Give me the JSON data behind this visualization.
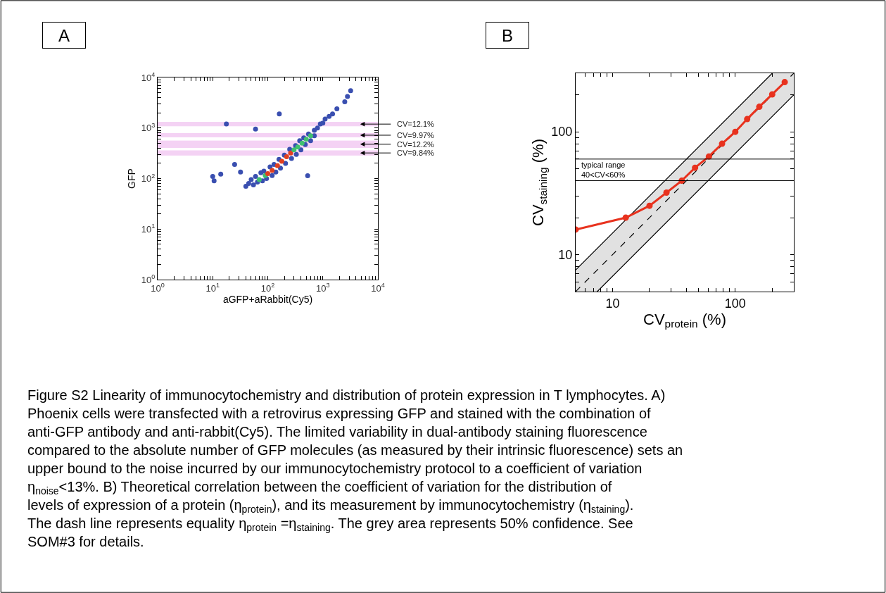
{
  "chart_data": [
    {
      "type": "scatter",
      "title": "A",
      "xlabel": "aGFP+aRabbit(Cy5)",
      "ylabel": "GFP",
      "log": "xy",
      "marker": "circle",
      "grid": false,
      "legend": false,
      "xlim": [
        1,
        10000
      ],
      "ylim": [
        1,
        10000
      ],
      "xticks": [
        {
          "value": 1,
          "label": "10$^{0}$"
        },
        {
          "value": 2,
          "label": null
        },
        {
          "value": 3,
          "label": null
        },
        {
          "value": 4,
          "label": null
        },
        {
          "value": 5,
          "label": null
        },
        {
          "value": 6,
          "label": null
        },
        {
          "value": 7,
          "label": null
        },
        {
          "value": 8,
          "label": null
        },
        {
          "value": 9,
          "label": null
        },
        {
          "value": 10,
          "label": "10$^{1}$"
        },
        {
          "value": 20,
          "label": null
        },
        {
          "value": 30,
          "label": null
        },
        {
          "value": 40,
          "label": null
        },
        {
          "value": 50,
          "label": null
        },
        {
          "value": 60,
          "label": null
        },
        {
          "value": 70,
          "label": null
        },
        {
          "value": 80,
          "label": null
        },
        {
          "value": 90,
          "label": null
        },
        {
          "value": 100,
          "label": "10$^{2}$"
        },
        {
          "value": 200,
          "label": null
        },
        {
          "value": 300,
          "label": null
        },
        {
          "value": 400,
          "label": null
        },
        {
          "value": 500,
          "label": null
        },
        {
          "value": 600,
          "label": null
        },
        {
          "value": 700,
          "label": null
        },
        {
          "value": 800,
          "label": null
        },
        {
          "value": 900,
          "label": null
        },
        {
          "value": 1000,
          "label": "10$^{3}$"
        },
        {
          "value": 2000,
          "label": null
        },
        {
          "value": 3000,
          "label": null
        },
        {
          "value": 4000,
          "label": null
        },
        {
          "value": 5000,
          "label": null
        },
        {
          "value": 6000,
          "label": null
        },
        {
          "value": 7000,
          "label": null
        },
        {
          "value": 8000,
          "label": null
        },
        {
          "value": 9000,
          "label": null
        },
        {
          "value": 10000,
          "label": "10$^{4}$"
        }
      ],
      "yticks": [
        {
          "value": 1,
          "label": "10$^{0}$"
        },
        {
          "value": 2,
          "label": null
        },
        {
          "value": 3,
          "label": null
        },
        {
          "value": 4,
          "label": null
        },
        {
          "value": 5,
          "label": null
        },
        {
          "value": 6,
          "label": null
        },
        {
          "value": 7,
          "label": null
        },
        {
          "value": 8,
          "label": null
        },
        {
          "value": 9,
          "label": null
        },
        {
          "value": 10,
          "label": "10$^{1}$"
        },
        {
          "value": 20,
          "label": null
        },
        {
          "value": 30,
          "label": null
        },
        {
          "value": 40,
          "label": null
        },
        {
          "value": 50,
          "label": null
        },
        {
          "value": 60,
          "label": null
        },
        {
          "value": 70,
          "label": null
        },
        {
          "value": 80,
          "label": null
        },
        {
          "value": 90,
          "label": null
        },
        {
          "value": 100,
          "label": "10$^{2}$"
        },
        {
          "value": 200,
          "label": null
        },
        {
          "value": 300,
          "label": null
        },
        {
          "value": 400,
          "label": null
        },
        {
          "value": 500,
          "label": null
        },
        {
          "value": 600,
          "label": null
        },
        {
          "value": 700,
          "label": null
        },
        {
          "value": 800,
          "label": null
        },
        {
          "value": 900,
          "label": null
        },
        {
          "value": 1000,
          "label": "10$^{3}$"
        },
        {
          "value": 2000,
          "label": null
        },
        {
          "value": 3000,
          "label": null
        },
        {
          "value": 4000,
          "label": null
        },
        {
          "value": 5000,
          "label": null
        },
        {
          "value": 6000,
          "label": null
        },
        {
          "value": 7000,
          "label": null
        },
        {
          "value": 8000,
          "label": null
        },
        {
          "value": 9000,
          "label": null
        },
        {
          "value": 10000,
          "label": "10$^{4}$"
        }
      ],
      "x": [
        40,
        45,
        50,
        55,
        60,
        65,
        75,
        80,
        85,
        95,
        110,
        120,
        130,
        140,
        160,
        170,
        200,
        210,
        250,
        270,
        320,
        330,
        380,
        400,
        450,
        480,
        550,
        600,
        700,
        700,
        800,
        900,
        1000,
        1100,
        1300,
        1500,
        1800,
        2500,
        3200,
        2800,
        10,
        10.6,
        17.7,
        162,
        530,
        14,
        25,
        32,
        60,
        70,
        90,
        100,
        120,
        150,
        180,
        220,
        260,
        300,
        350,
        420,
        500,
        600
      ],
      "values": [
        70,
        80,
        95,
        75,
        110,
        85,
        130,
        90,
        140,
        100,
        170,
        115,
        190,
        135,
        240,
        160,
        290,
        200,
        380,
        250,
        450,
        300,
        560,
        370,
        640,
        470,
        760,
        560,
        900,
        700,
        1000,
        1200,
        1250,
        1500,
        1700,
        1900,
        2400,
        3300,
        5500,
        4200,
        110,
        90,
        1200,
        1900,
        114,
        122,
        190,
        135,
        950,
        95,
        115,
        125,
        145,
        180,
        220,
        270,
        320,
        370,
        420,
        500,
        600,
        700
      ],
      "colors": [
        "#3a4fb0",
        "#3a4fb0",
        "#3a4fb0",
        "#3a4fb0",
        "#3a4fb0",
        "#3a4fb0",
        "#3a4fb0",
        "#3a4fb0",
        "#3a4fb0",
        "#3a4fb0",
        "#3a4fb0",
        "#3a4fb0",
        "#3a4fb0",
        "#3a4fb0",
        "#3a4fb0",
        "#3a4fb0",
        "#3a4fb0",
        "#3a4fb0",
        "#3a4fb0",
        "#3a4fb0",
        "#3a4fb0",
        "#3a4fb0",
        "#3a4fb0",
        "#3a4fb0",
        "#3a4fb0",
        "#3a4fb0",
        "#3a4fb0",
        "#3a4fb0",
        "#3a4fb0",
        "#3a4fb0",
        "#3a4fb0",
        "#3a4fb0",
        "#3a4fb0",
        "#3a4fb0",
        "#3a4fb0",
        "#3a4fb0",
        "#3a4fb0",
        "#3a4fb0",
        "#3a4fb0",
        "#3a4fb0",
        "#3a4fb0",
        "#3a4fb0",
        "#3a4fb0",
        "#3a4fb0",
        "#3a4fb0",
        "#3a4fb0",
        "#3a4fb0",
        "#3a4fb0",
        "#3a4fb0",
        "#40c070",
        "#40c070",
        "#e04020",
        "#e04020",
        "#e04020",
        "#e04020",
        "#e04020",
        "#e04020",
        "#40c070",
        "#40c070",
        "#40c070",
        "#40c070",
        "#40c070"
      ],
      "bands": [
        {
          "axis": "y",
          "from": 1100,
          "to": 1300,
          "label": "CV=12.1%",
          "color": "#e080e0"
        },
        {
          "axis": "y",
          "from": 665,
          "to": 780,
          "label": "CV=9.97%",
          "color": "#e080e0"
        },
        {
          "axis": "y",
          "from": 410,
          "to": 555,
          "label": "CV=12.2%",
          "color": "#e080e0"
        },
        {
          "axis": "y",
          "from": 290,
          "to": 355,
          "label": "CV=9.84%",
          "color": "#e080e0"
        }
      ]
    },
    {
      "type": "line",
      "title": "B",
      "xlabel": "CV$_{protein}$ (%)",
      "ylabel": "CV$_{staining}$ (%)",
      "log": "xy",
      "grid": false,
      "legend": false,
      "xlim": [
        5,
        300
      ],
      "ylim": [
        5,
        300
      ],
      "xticks": [
        {
          "value": 5,
          "label": null
        },
        {
          "value": 6,
          "label": null
        },
        {
          "value": 7,
          "label": null
        },
        {
          "value": 8,
          "label": null
        },
        {
          "value": 9,
          "label": null
        },
        10,
        {
          "value": 20,
          "label": null
        },
        {
          "value": 30,
          "label": null
        },
        {
          "value": 40,
          "label": null
        },
        {
          "value": 50,
          "label": null
        },
        {
          "value": 60,
          "label": null
        },
        {
          "value": 70,
          "label": null
        },
        {
          "value": 80,
          "label": null
        },
        {
          "value": 90,
          "label": null
        },
        100,
        {
          "value": 200,
          "label": null
        },
        {
          "value": 300,
          "label": null
        }
      ],
      "yticks": [
        {
          "value": 5,
          "label": null
        },
        {
          "value": 6,
          "label": null
        },
        {
          "value": 7,
          "label": null
        },
        {
          "value": 8,
          "label": null
        },
        {
          "value": 9,
          "label": null
        },
        10,
        {
          "value": 20,
          "label": null
        },
        {
          "value": 30,
          "label": null
        },
        {
          "value": 40,
          "label": null
        },
        {
          "value": 50,
          "label": null
        },
        {
          "value": 60,
          "label": null
        },
        {
          "value": 70,
          "label": null
        },
        {
          "value": 80,
          "label": null
        },
        {
          "value": 90,
          "label": null
        },
        100,
        {
          "value": 200,
          "label": null
        },
        {
          "value": 300,
          "label": null
        }
      ],
      "series": [
        {
          "color": "#000000",
          "line_style": "dashed",
          "marker": "none",
          "x": [
            5,
            7.5,
            200,
            300
          ],
          "values": [
            5,
            7.5,
            200,
            300
          ],
          "lower": [
            5,
            5,
            133,
            200
          ],
          "upper": [
            7.5,
            11.25,
            300,
            300
          ]
        },
        {
          "color": "#000000",
          "line_style": "solid",
          "marker": "none",
          "x": [
            5,
            200
          ],
          "values": [
            7.5,
            300
          ]
        },
        {
          "color": "#000000",
          "line_style": "solid",
          "marker": "none",
          "x": [
            7.5,
            300
          ],
          "values": [
            5,
            200
          ]
        },
        {
          "color": "#e8321e",
          "line_style": "solid",
          "marker": "circle",
          "x": [
            5,
            12.8,
            20,
            27.5,
            36.6,
            47,
            61,
            78,
            100,
            125,
            157,
            200,
            253
          ],
          "values": [
            16,
            20,
            25,
            32,
            40,
            51,
            63,
            80,
            100,
            127,
            160,
            202,
            254
          ]
        }
      ],
      "ref_lines": [
        {
          "axis": "y",
          "value": 60,
          "label": "typical range\n40<CV<60%",
          "color": "#000000"
        },
        {
          "axis": "y",
          "value": 40,
          "color": "#000000"
        }
      ],
      "annotations": [
        "Figure S2 Linearity of immunocytochemistry and distribution of protein expression in T lymphocytes. A) Phoenix cells were transfected with a retrovirus expressing GFP and stained with the combination of anti-GFP antibody and anti-rabbit(Cy5). The limited variability in dual-antibody staining fluorescence compared to the absolute number of GFP molecules (as measured by their intrinsic fluorescence) sets an upper bound to the noise incurred by our immunocytochemistry protocol to a coefficient of variation η$_{noise}$<13%. B) Theoretical correlation between the coefficient of variation for the distribution of levels of expression of a protein (η$_{protein}$), and its measurement by immunocytochemistry (η$_{staining}$). The dash line represents equality η$_{protein}$ =η$_{staining}$. The grey area represents 50% confidence. See SOM#3 for details."
      ]
    }
  ]
}
